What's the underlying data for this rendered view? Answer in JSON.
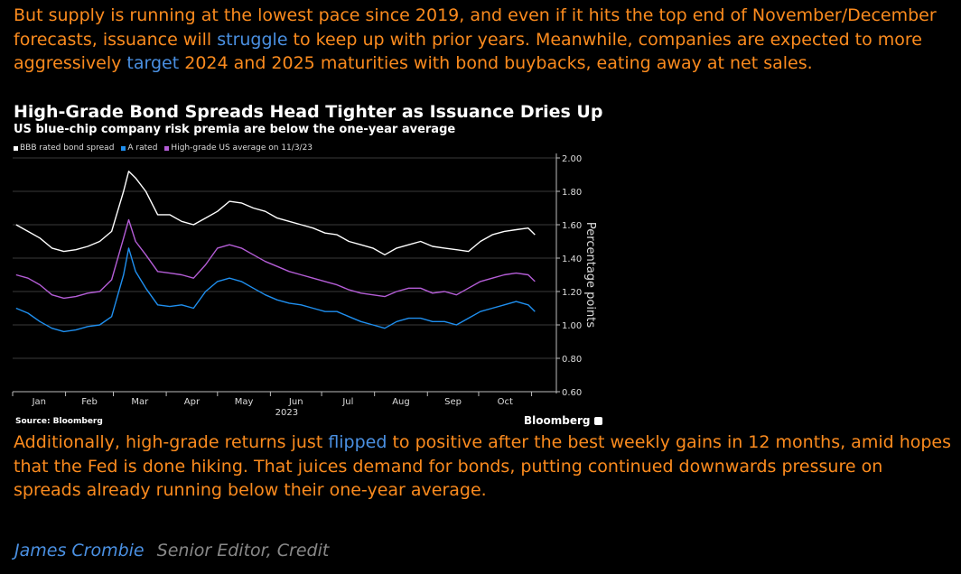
{
  "article": {
    "para1": {
      "t1": "But supply is running at the lowest pace since 2019, and even if it hits the top end of November/December forecasts, issuance will ",
      "link1": "struggle",
      "t2": " to keep up with prior years. Meanwhile, companies are expected to more aggressively ",
      "link2": "target",
      "t3": " 2024 and 2025 maturities with bond buybacks, eating away at net sales."
    },
    "para2": {
      "t1": "Additionally, high-grade returns just ",
      "link1": "flipped",
      "t2": " to positive after the best weekly gains in 12 months, amid hopes that the Fed is done hiking. That juices demand for bonds, putting continued downwards pressure on spreads already running below their one-year average."
    },
    "author": {
      "name": "James Crombie",
      "role": "Senior Editor, Credit"
    }
  },
  "colors": {
    "text": "#fb8b1e",
    "link": "#4a90e2",
    "bbb": "#ffffff",
    "a_rated": "#1f8fef",
    "hg_avg": "#b45dd6"
  },
  "chart_data": {
    "type": "line",
    "title": "High-Grade Bond Spreads Head Tighter as Issuance Dries Up",
    "subtitle": "US blue-chip company risk premia are below the one-year average",
    "ylabel": "Percentage points",
    "xlabel": "2023",
    "ylim": [
      0.6,
      2.0
    ],
    "yticks": [
      "2.00",
      "1.80",
      "1.60",
      "1.40",
      "1.20",
      "1.00",
      "0.80",
      "0.60"
    ],
    "ytick_values": [
      2.0,
      1.8,
      1.6,
      1.4,
      1.2,
      1.0,
      0.8,
      0.6
    ],
    "months": [
      "Jan",
      "Feb",
      "Mar",
      "Apr",
      "May",
      "Jun",
      "Jul",
      "Aug",
      "Sep",
      "Oct"
    ],
    "x_year_label": "2023",
    "x_dates": [
      "2023-01-03",
      "2023-01-10",
      "2023-01-17",
      "2023-01-24",
      "2023-01-31",
      "2023-02-07",
      "2023-02-14",
      "2023-02-21",
      "2023-02-28",
      "2023-03-07",
      "2023-03-10",
      "2023-03-14",
      "2023-03-20",
      "2023-03-27",
      "2023-04-03",
      "2023-04-10",
      "2023-04-17",
      "2023-04-24",
      "2023-05-01",
      "2023-05-08",
      "2023-05-15",
      "2023-05-22",
      "2023-05-29",
      "2023-06-05",
      "2023-06-12",
      "2023-06-19",
      "2023-06-26",
      "2023-07-03",
      "2023-07-10",
      "2023-07-17",
      "2023-07-24",
      "2023-07-31",
      "2023-08-07",
      "2023-08-14",
      "2023-08-21",
      "2023-08-28",
      "2023-09-04",
      "2023-09-11",
      "2023-09-18",
      "2023-09-25",
      "2023-10-02",
      "2023-10-09",
      "2023-10-16",
      "2023-10-23",
      "2023-10-30",
      "2023-11-03"
    ],
    "series": [
      {
        "name": "BBB rated bond spread",
        "color": "#ffffff",
        "values": [
          1.6,
          1.56,
          1.52,
          1.46,
          1.44,
          1.45,
          1.47,
          1.5,
          1.56,
          1.8,
          1.92,
          1.88,
          1.8,
          1.66,
          1.66,
          1.62,
          1.6,
          1.64,
          1.68,
          1.74,
          1.73,
          1.7,
          1.68,
          1.64,
          1.62,
          1.6,
          1.58,
          1.55,
          1.54,
          1.5,
          1.48,
          1.46,
          1.42,
          1.46,
          1.48,
          1.5,
          1.47,
          1.46,
          1.45,
          1.44,
          1.5,
          1.54,
          1.56,
          1.57,
          1.58,
          1.54
        ]
      },
      {
        "name": "A rated",
        "color": "#1f8fef",
        "values": [
          1.1,
          1.07,
          1.02,
          0.98,
          0.96,
          0.97,
          0.99,
          1.0,
          1.05,
          1.3,
          1.46,
          1.32,
          1.22,
          1.12,
          1.11,
          1.12,
          1.1,
          1.2,
          1.26,
          1.28,
          1.26,
          1.22,
          1.18,
          1.15,
          1.13,
          1.12,
          1.1,
          1.08,
          1.08,
          1.05,
          1.02,
          1.0,
          0.98,
          1.02,
          1.04,
          1.04,
          1.02,
          1.02,
          1.0,
          1.04,
          1.08,
          1.1,
          1.12,
          1.14,
          1.12,
          1.08
        ]
      },
      {
        "name": "High-grade US average on 11/3/23",
        "color": "#b45dd6",
        "values": [
          1.3,
          1.28,
          1.24,
          1.18,
          1.16,
          1.17,
          1.19,
          1.2,
          1.27,
          1.52,
          1.63,
          1.5,
          1.42,
          1.32,
          1.31,
          1.3,
          1.28,
          1.36,
          1.46,
          1.48,
          1.46,
          1.42,
          1.38,
          1.35,
          1.32,
          1.3,
          1.28,
          1.26,
          1.24,
          1.21,
          1.19,
          1.18,
          1.17,
          1.2,
          1.22,
          1.22,
          1.19,
          1.2,
          1.18,
          1.22,
          1.26,
          1.28,
          1.3,
          1.31,
          1.3,
          1.26
        ]
      }
    ],
    "legend": [
      "BBB rated bond spread",
      "A rated",
      "High-grade US average on 11/3/23"
    ],
    "legend_position": "top-left",
    "grid": true,
    "source": "Source: Bloomberg",
    "brand": "Bloomberg"
  }
}
